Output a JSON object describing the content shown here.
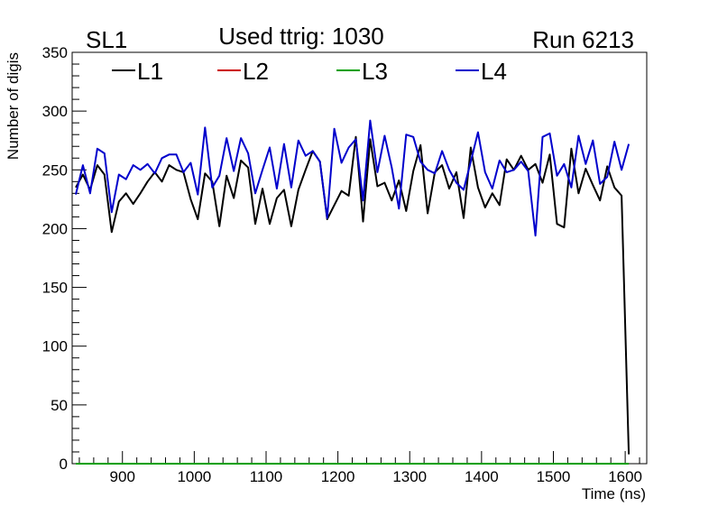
{
  "chart_data": {
    "type": "line",
    "title": "Used ttrig: 1030",
    "top_left_label": "SL1",
    "top_right_label": "Run 6213",
    "xlabel": "Time (ns)",
    "ylabel": "Number of digis",
    "xlim": [
      830,
      1630
    ],
    "ylim": [
      0,
      350
    ],
    "x_ticks": [
      900,
      1000,
      1100,
      1200,
      1300,
      1400,
      1500,
      1600
    ],
    "y_ticks": [
      0,
      50,
      100,
      150,
      200,
      250,
      300,
      350
    ],
    "bin_start": 835,
    "bin_width": 10,
    "legend": [
      "L1",
      "L2",
      "L3",
      "L4"
    ],
    "series": [
      {
        "name": "L1",
        "color": "#000000",
        "values": [
          235,
          246,
          233,
          254,
          246,
          197,
          223,
          230,
          221,
          230,
          240,
          248,
          240,
          254,
          250,
          248,
          225,
          208,
          247,
          240,
          202,
          245,
          226,
          258,
          252,
          204,
          234,
          204,
          226,
          233,
          202,
          233,
          250,
          266,
          257,
          208,
          220,
          232,
          228,
          278,
          206,
          276,
          236,
          239,
          224,
          241,
          215,
          249,
          271,
          213,
          248,
          254,
          234,
          248,
          209,
          269,
          235,
          218,
          230,
          220,
          259,
          250,
          262,
          250,
          255,
          239,
          263,
          204,
          201,
          268,
          230,
          251,
          237,
          224,
          253,
          235,
          228,
          8
        ]
      },
      {
        "name": "L2",
        "color": "#cc0000",
        "values": [
          0,
          0,
          0,
          0,
          0,
          0,
          0,
          0,
          0,
          0,
          0,
          0,
          0,
          0,
          0,
          0,
          0,
          0,
          0,
          0,
          0,
          0,
          0,
          0,
          0,
          0,
          0,
          0,
          0,
          0,
          0,
          0,
          0,
          0,
          0,
          0,
          0,
          0,
          0,
          0,
          0,
          0,
          0,
          0,
          0,
          0,
          0,
          0,
          0,
          0,
          0,
          0,
          0,
          0,
          0,
          0,
          0,
          0,
          0,
          0,
          0,
          0,
          0,
          0,
          0,
          0,
          0,
          0,
          0,
          0,
          0,
          0,
          0,
          0,
          0,
          0,
          0,
          0
        ]
      },
      {
        "name": "L3",
        "color": "#00a000",
        "values": [
          0,
          0,
          0,
          0,
          0,
          0,
          0,
          0,
          0,
          0,
          0,
          0,
          0,
          0,
          0,
          0,
          0,
          0,
          0,
          0,
          0,
          0,
          0,
          0,
          0,
          0,
          0,
          0,
          0,
          0,
          0,
          0,
          0,
          0,
          0,
          0,
          0,
          0,
          0,
          0,
          0,
          0,
          0,
          0,
          0,
          0,
          0,
          0,
          0,
          0,
          0,
          0,
          0,
          0,
          0,
          0,
          0,
          0,
          0,
          0,
          0,
          0,
          0,
          0,
          0,
          0,
          0,
          0,
          0,
          0,
          0,
          0,
          0,
          0,
          0,
          0,
          0,
          0
        ]
      },
      {
        "name": "L4",
        "color": "#0000cc",
        "values": [
          229,
          254,
          230,
          268,
          264,
          214,
          246,
          242,
          254,
          250,
          255,
          247,
          260,
          263,
          263,
          248,
          256,
          229,
          286,
          235,
          245,
          277,
          249,
          277,
          264,
          230,
          250,
          269,
          234,
          272,
          235,
          275,
          262,
          266,
          257,
          209,
          285,
          256,
          269,
          276,
          224,
          292,
          248,
          279,
          252,
          217,
          280,
          278,
          257,
          250,
          247,
          266,
          250,
          239,
          233,
          257,
          282,
          248,
          234,
          258,
          248,
          250,
          257,
          249,
          194,
          278,
          281,
          245,
          255,
          235,
          279,
          255,
          275,
          238,
          244,
          274,
          250,
          272
        ]
      }
    ]
  }
}
